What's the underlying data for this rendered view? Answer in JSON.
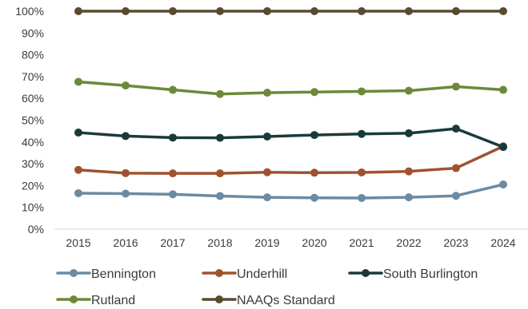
{
  "chart_data": {
    "type": "line",
    "x": [
      "2015",
      "2016",
      "2017",
      "2018",
      "2019",
      "2020",
      "2021",
      "2022",
      "2023",
      "2024"
    ],
    "ylim": [
      0,
      1
    ],
    "yticks": [
      "0%",
      "10%",
      "20%",
      "30%",
      "40%",
      "50%",
      "60%",
      "70%",
      "80%",
      "90%",
      "100%"
    ],
    "grid": false,
    "legend_position": "bottom",
    "series": [
      {
        "name": "Bennington",
        "color": "#6b8ba3",
        "values": [
          0.165,
          0.163,
          0.16,
          0.152,
          0.146,
          0.144,
          0.143,
          0.146,
          0.153,
          0.205
        ]
      },
      {
        "name": "Underhill",
        "color": "#a0522d",
        "values": [
          0.272,
          0.257,
          0.256,
          0.256,
          0.261,
          0.259,
          0.26,
          0.265,
          0.28,
          0.38
        ]
      },
      {
        "name": "South Burlington",
        "color": "#1a3a3a",
        "values": [
          0.443,
          0.427,
          0.42,
          0.419,
          0.425,
          0.432,
          0.437,
          0.44,
          0.461,
          0.377
        ]
      },
      {
        "name": "Rutland",
        "color": "#6a8a3a",
        "values": [
          0.676,
          0.659,
          0.639,
          0.62,
          0.626,
          0.629,
          0.632,
          0.635,
          0.654,
          0.639
        ]
      },
      {
        "name": "NAAQs Standard",
        "color": "#5a4a30",
        "values": [
          1,
          1,
          1,
          1,
          1,
          1,
          1,
          1,
          1,
          1
        ]
      }
    ]
  }
}
